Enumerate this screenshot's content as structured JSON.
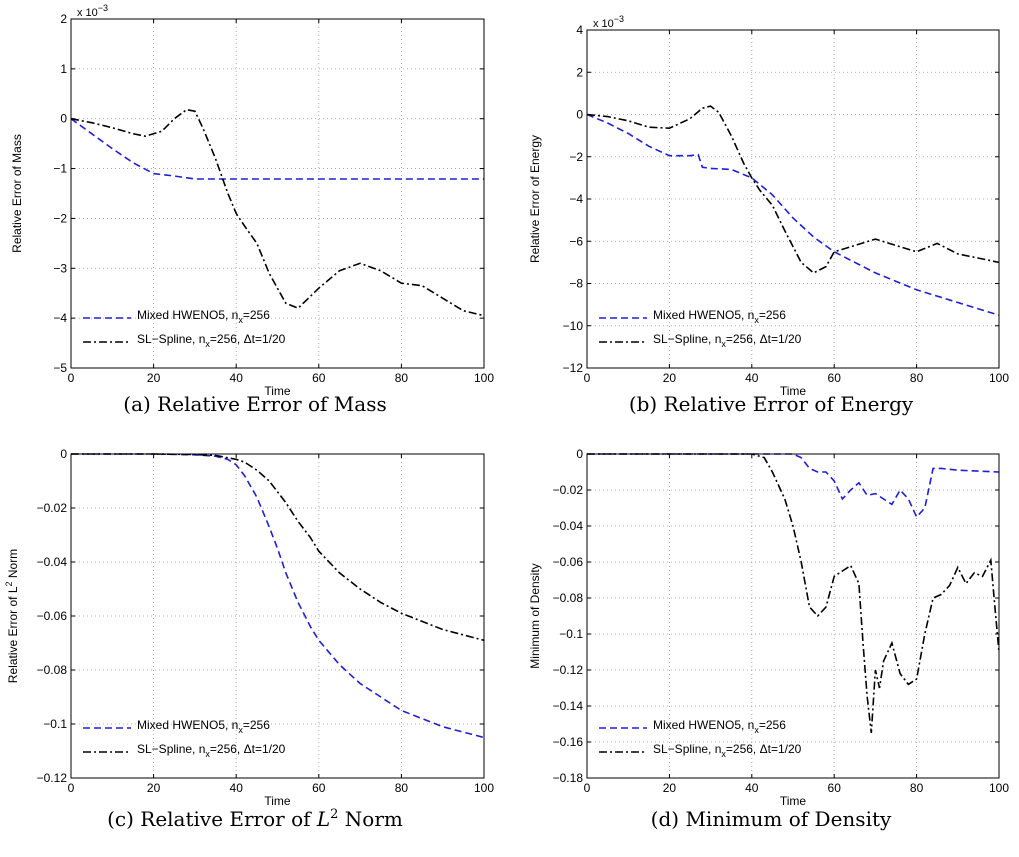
{
  "chart_data": [
    {
      "type": "line",
      "panel": "a",
      "caption_prefix": "(a) Relative Error of Mass",
      "caption_math": "",
      "caption_suffix": "",
      "xlabel": "Time",
      "ylabel": "Relative Error of Mass",
      "ylabel_sup": "",
      "ylabel_post": "",
      "multiplier": "x 10",
      "multiplier_exp": "−3",
      "xlim": [
        0,
        100
      ],
      "ylim": [
        -5,
        2
      ],
      "xticks": [
        0,
        20,
        40,
        60,
        80,
        100
      ],
      "yticks": [
        -5,
        -4,
        -3,
        -2,
        -1,
        0,
        1,
        2
      ],
      "ytick_labels": [
        "−5",
        "−4",
        "−3",
        "−2",
        "−1",
        "0",
        "1",
        "2"
      ],
      "grid": true,
      "legend": "bottom-left",
      "series": [
        {
          "name": "Mixed HWENO5, n",
          "name_sub": "x",
          "name_post": "=256",
          "color": "#1f1fd6",
          "dash": "dashed",
          "x": [
            0,
            5,
            10,
            15,
            20,
            25,
            30,
            40,
            60,
            80,
            100
          ],
          "y": [
            0,
            -0.3,
            -0.6,
            -0.88,
            -1.1,
            -1.15,
            -1.21,
            -1.21,
            -1.21,
            -1.21,
            -1.21
          ]
        },
        {
          "name": "SL−Spline, n",
          "name_sub": "x",
          "name_post": "=256, Δt=1/20",
          "color": "#000000",
          "dash": "dashdot",
          "x": [
            0,
            5,
            10,
            15,
            18,
            22,
            25,
            28,
            30,
            32,
            35,
            38,
            40,
            42,
            45,
            48,
            52,
            55,
            60,
            65,
            70,
            75,
            80,
            85,
            90,
            95,
            100
          ],
          "y": [
            0,
            -0.08,
            -0.18,
            -0.3,
            -0.35,
            -0.25,
            0.0,
            0.18,
            0.15,
            -0.2,
            -0.8,
            -1.5,
            -1.9,
            -2.15,
            -2.5,
            -3.1,
            -3.7,
            -3.8,
            -3.4,
            -3.05,
            -2.9,
            -3.05,
            -3.3,
            -3.35,
            -3.6,
            -3.85,
            -3.95
          ]
        }
      ]
    },
    {
      "type": "line",
      "panel": "b",
      "caption_prefix": "(b) Relative Error of Energy",
      "caption_math": "",
      "caption_suffix": "",
      "xlabel": "Time",
      "ylabel": "Relative Error of Energy",
      "ylabel_sup": "",
      "ylabel_post": "",
      "multiplier": "x 10",
      "multiplier_exp": "−3",
      "xlim": [
        0,
        100
      ],
      "ylim": [
        -12,
        4
      ],
      "xticks": [
        0,
        20,
        40,
        60,
        80,
        100
      ],
      "yticks": [
        -12,
        -10,
        -8,
        -6,
        -4,
        -2,
        0,
        2,
        4
      ],
      "ytick_labels": [
        "−12",
        "−10",
        "−8",
        "−6",
        "−4",
        "−2",
        "0",
        "2",
        "4"
      ],
      "grid": true,
      "legend": "bottom-left",
      "series": [
        {
          "name": "Mixed HWENO5, n",
          "name_sub": "x",
          "name_post": "=256",
          "color": "#1f1fd6",
          "dash": "dashed",
          "x": [
            0,
            5,
            10,
            15,
            20,
            25,
            27,
            28,
            30,
            35,
            40,
            45,
            50,
            55,
            60,
            70,
            80,
            90,
            100
          ],
          "y": [
            0,
            -0.4,
            -0.9,
            -1.5,
            -1.95,
            -1.95,
            -1.9,
            -2.5,
            -2.55,
            -2.6,
            -3.0,
            -3.8,
            -4.9,
            -5.8,
            -6.5,
            -7.5,
            -8.3,
            -8.9,
            -9.5
          ]
        },
        {
          "name": "SL−Spline, n",
          "name_sub": "x",
          "name_post": "=256, Δt=1/20",
          "color": "#000000",
          "dash": "dashdot",
          "x": [
            0,
            5,
            10,
            15,
            20,
            25,
            28,
            30,
            32,
            35,
            38,
            40,
            42,
            45,
            48,
            52,
            55,
            58,
            60,
            65,
            70,
            75,
            80,
            85,
            90,
            95,
            100
          ],
          "y": [
            0,
            -0.1,
            -0.3,
            -0.6,
            -0.65,
            -0.2,
            0.3,
            0.4,
            0.1,
            -1.0,
            -2.3,
            -3.0,
            -3.6,
            -4.3,
            -5.5,
            -7.0,
            -7.5,
            -7.2,
            -6.5,
            -6.2,
            -5.9,
            -6.2,
            -6.5,
            -6.1,
            -6.6,
            -6.8,
            -7.0
          ]
        }
      ]
    },
    {
      "type": "line",
      "panel": "c",
      "caption_prefix": "(c) Relative Error of ",
      "caption_math": "L",
      "caption_sup": "2",
      "caption_suffix": " Norm",
      "xlabel": "Time",
      "ylabel": "Relative Error of L",
      "ylabel_sup": "2",
      "ylabel_post": " Norm",
      "multiplier": "",
      "multiplier_exp": "",
      "xlim": [
        0,
        100
      ],
      "ylim": [
        -0.12,
        0
      ],
      "xticks": [
        0,
        20,
        40,
        60,
        80,
        100
      ],
      "yticks": [
        -0.12,
        -0.1,
        -0.08,
        -0.06,
        -0.04,
        -0.02,
        0
      ],
      "ytick_labels": [
        "−0.12",
        "−0.1",
        "−0.08",
        "−0.06",
        "−0.04",
        "−0.02",
        "0"
      ],
      "grid": true,
      "legend": "bottom-left",
      "series": [
        {
          "name": "Mixed HWENO5, n",
          "name_sub": "x",
          "name_post": "=256",
          "color": "#1f1fd6",
          "dash": "dashed",
          "x": [
            0,
            10,
            20,
            30,
            35,
            38,
            40,
            42,
            45,
            48,
            50,
            52,
            55,
            58,
            60,
            65,
            70,
            75,
            80,
            85,
            90,
            95,
            100
          ],
          "y": [
            0,
            0,
            0,
            -0.0003,
            -0.0008,
            -0.002,
            -0.004,
            -0.008,
            -0.016,
            -0.027,
            -0.035,
            -0.044,
            -0.055,
            -0.064,
            -0.069,
            -0.078,
            -0.085,
            -0.09,
            -0.095,
            -0.098,
            -0.101,
            -0.103,
            -0.105
          ]
        },
        {
          "name": "SL−Spline, n",
          "name_sub": "x",
          "name_post": "=256, Δt=1/20",
          "color": "#000000",
          "dash": "dashdot",
          "x": [
            0,
            10,
            20,
            30,
            35,
            40,
            42,
            45,
            48,
            50,
            52,
            55,
            58,
            60,
            65,
            70,
            75,
            80,
            85,
            90,
            95,
            100
          ],
          "y": [
            0,
            0,
            0,
            -0.0002,
            -0.0005,
            -0.002,
            -0.003,
            -0.006,
            -0.01,
            -0.014,
            -0.018,
            -0.025,
            -0.031,
            -0.036,
            -0.044,
            -0.05,
            -0.055,
            -0.059,
            -0.062,
            -0.065,
            -0.067,
            -0.069
          ]
        }
      ]
    },
    {
      "type": "line",
      "panel": "d",
      "caption_prefix": "(d) Minimum of Density",
      "caption_math": "",
      "caption_suffix": "",
      "xlabel": "Time",
      "ylabel": "Minimum of Density",
      "ylabel_sup": "",
      "ylabel_post": "",
      "multiplier": "",
      "multiplier_exp": "",
      "xlim": [
        0,
        100
      ],
      "ylim": [
        -0.18,
        0
      ],
      "xticks": [
        0,
        20,
        40,
        60,
        80,
        100
      ],
      "yticks": [
        -0.18,
        -0.16,
        -0.14,
        -0.12,
        -0.1,
        -0.08,
        -0.06,
        -0.04,
        -0.02,
        0
      ],
      "ytick_labels": [
        "−0.18",
        "−0.16",
        "−0.14",
        "−0.12",
        "−0.1",
        "−0.08",
        "−0.06",
        "−0.04",
        "−0.02",
        "0"
      ],
      "grid": true,
      "legend": "bottom-left",
      "series": [
        {
          "name": "Mixed HWENO5, n",
          "name_sub": "x",
          "name_post": "=256",
          "color": "#1f1fd6",
          "dash": "dashed",
          "x": [
            0,
            50,
            52,
            54,
            56,
            58,
            60,
            62,
            64,
            66,
            68,
            70,
            72,
            74,
            76,
            78,
            80,
            82,
            84,
            86,
            90,
            100
          ],
          "y": [
            0,
            0,
            -0.002,
            -0.008,
            -0.01,
            -0.01,
            -0.015,
            -0.025,
            -0.02,
            -0.016,
            -0.023,
            -0.022,
            -0.025,
            -0.028,
            -0.02,
            -0.025,
            -0.035,
            -0.03,
            -0.008,
            -0.008,
            -0.009,
            -0.01
          ]
        },
        {
          "name": "SL−Spline, n",
          "name_sub": "x",
          "name_post": "=256, Δt=1/20",
          "color": "#000000",
          "dash": "dashdot",
          "x": [
            0,
            40,
            43,
            45,
            48,
            50,
            52,
            54,
            56,
            58,
            60,
            62,
            64,
            66,
            67,
            68,
            69,
            70,
            71,
            72,
            74,
            76,
            78,
            80,
            82,
            84,
            86,
            88,
            90,
            92,
            94,
            96,
            98,
            99,
            100
          ],
          "y": [
            0,
            0,
            -0.002,
            -0.01,
            -0.025,
            -0.04,
            -0.06,
            -0.085,
            -0.09,
            -0.085,
            -0.068,
            -0.065,
            -0.062,
            -0.072,
            -0.105,
            -0.135,
            -0.155,
            -0.12,
            -0.13,
            -0.115,
            -0.105,
            -0.122,
            -0.128,
            -0.125,
            -0.1,
            -0.08,
            -0.078,
            -0.073,
            -0.063,
            -0.072,
            -0.066,
            -0.068,
            -0.059,
            -0.085,
            -0.11
          ]
        }
      ]
    }
  ]
}
